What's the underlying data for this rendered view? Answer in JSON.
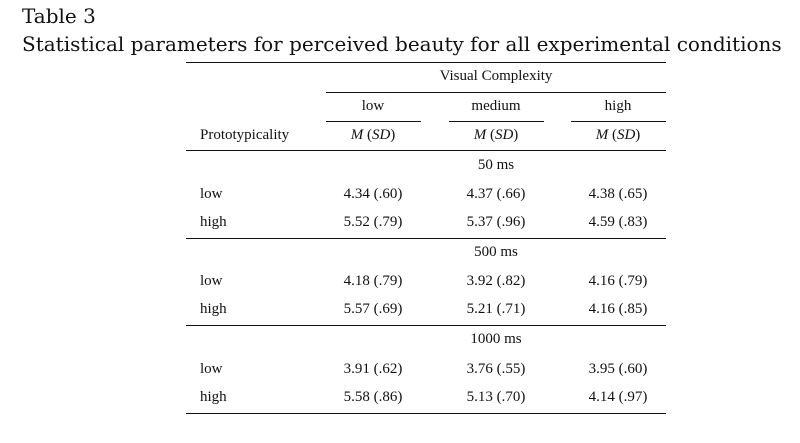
{
  "table_number": "Table 3",
  "caption": "Statistical parameters for perceived beauty for all experimental conditions",
  "spanner": "Visual Complexity",
  "col_levels": [
    "low",
    "medium",
    "high"
  ],
  "row_header": "Prototypicality",
  "stat_m": "M",
  "stat_sd": "SD",
  "blocks": [
    {
      "label": "50 ms",
      "rows": [
        {
          "label": "low",
          "values": [
            "4.34 (.60)",
            "4.37 (.66)",
            "4.38 (.65)"
          ]
        },
        {
          "label": "high",
          "values": [
            "5.52 (.79)",
            "5.37 (.96)",
            "4.59 (.83)"
          ]
        }
      ]
    },
    {
      "label": "500 ms",
      "rows": [
        {
          "label": "low",
          "values": [
            "4.18 (.79)",
            "3.92 (.82)",
            "4.16 (.79)"
          ]
        },
        {
          "label": "high",
          "values": [
            "5.57 (.69)",
            "5.21 (.71)",
            "4.16 (.85)"
          ]
        }
      ]
    },
    {
      "label": "1000 ms",
      "rows": [
        {
          "label": "low",
          "values": [
            "3.91 (.62)",
            "3.76 (.55)",
            "3.95 (.60)"
          ]
        },
        {
          "label": "high",
          "values": [
            "5.58 (.86)",
            "5.13 (.70)",
            "4.14 (.97)"
          ]
        }
      ]
    }
  ]
}
